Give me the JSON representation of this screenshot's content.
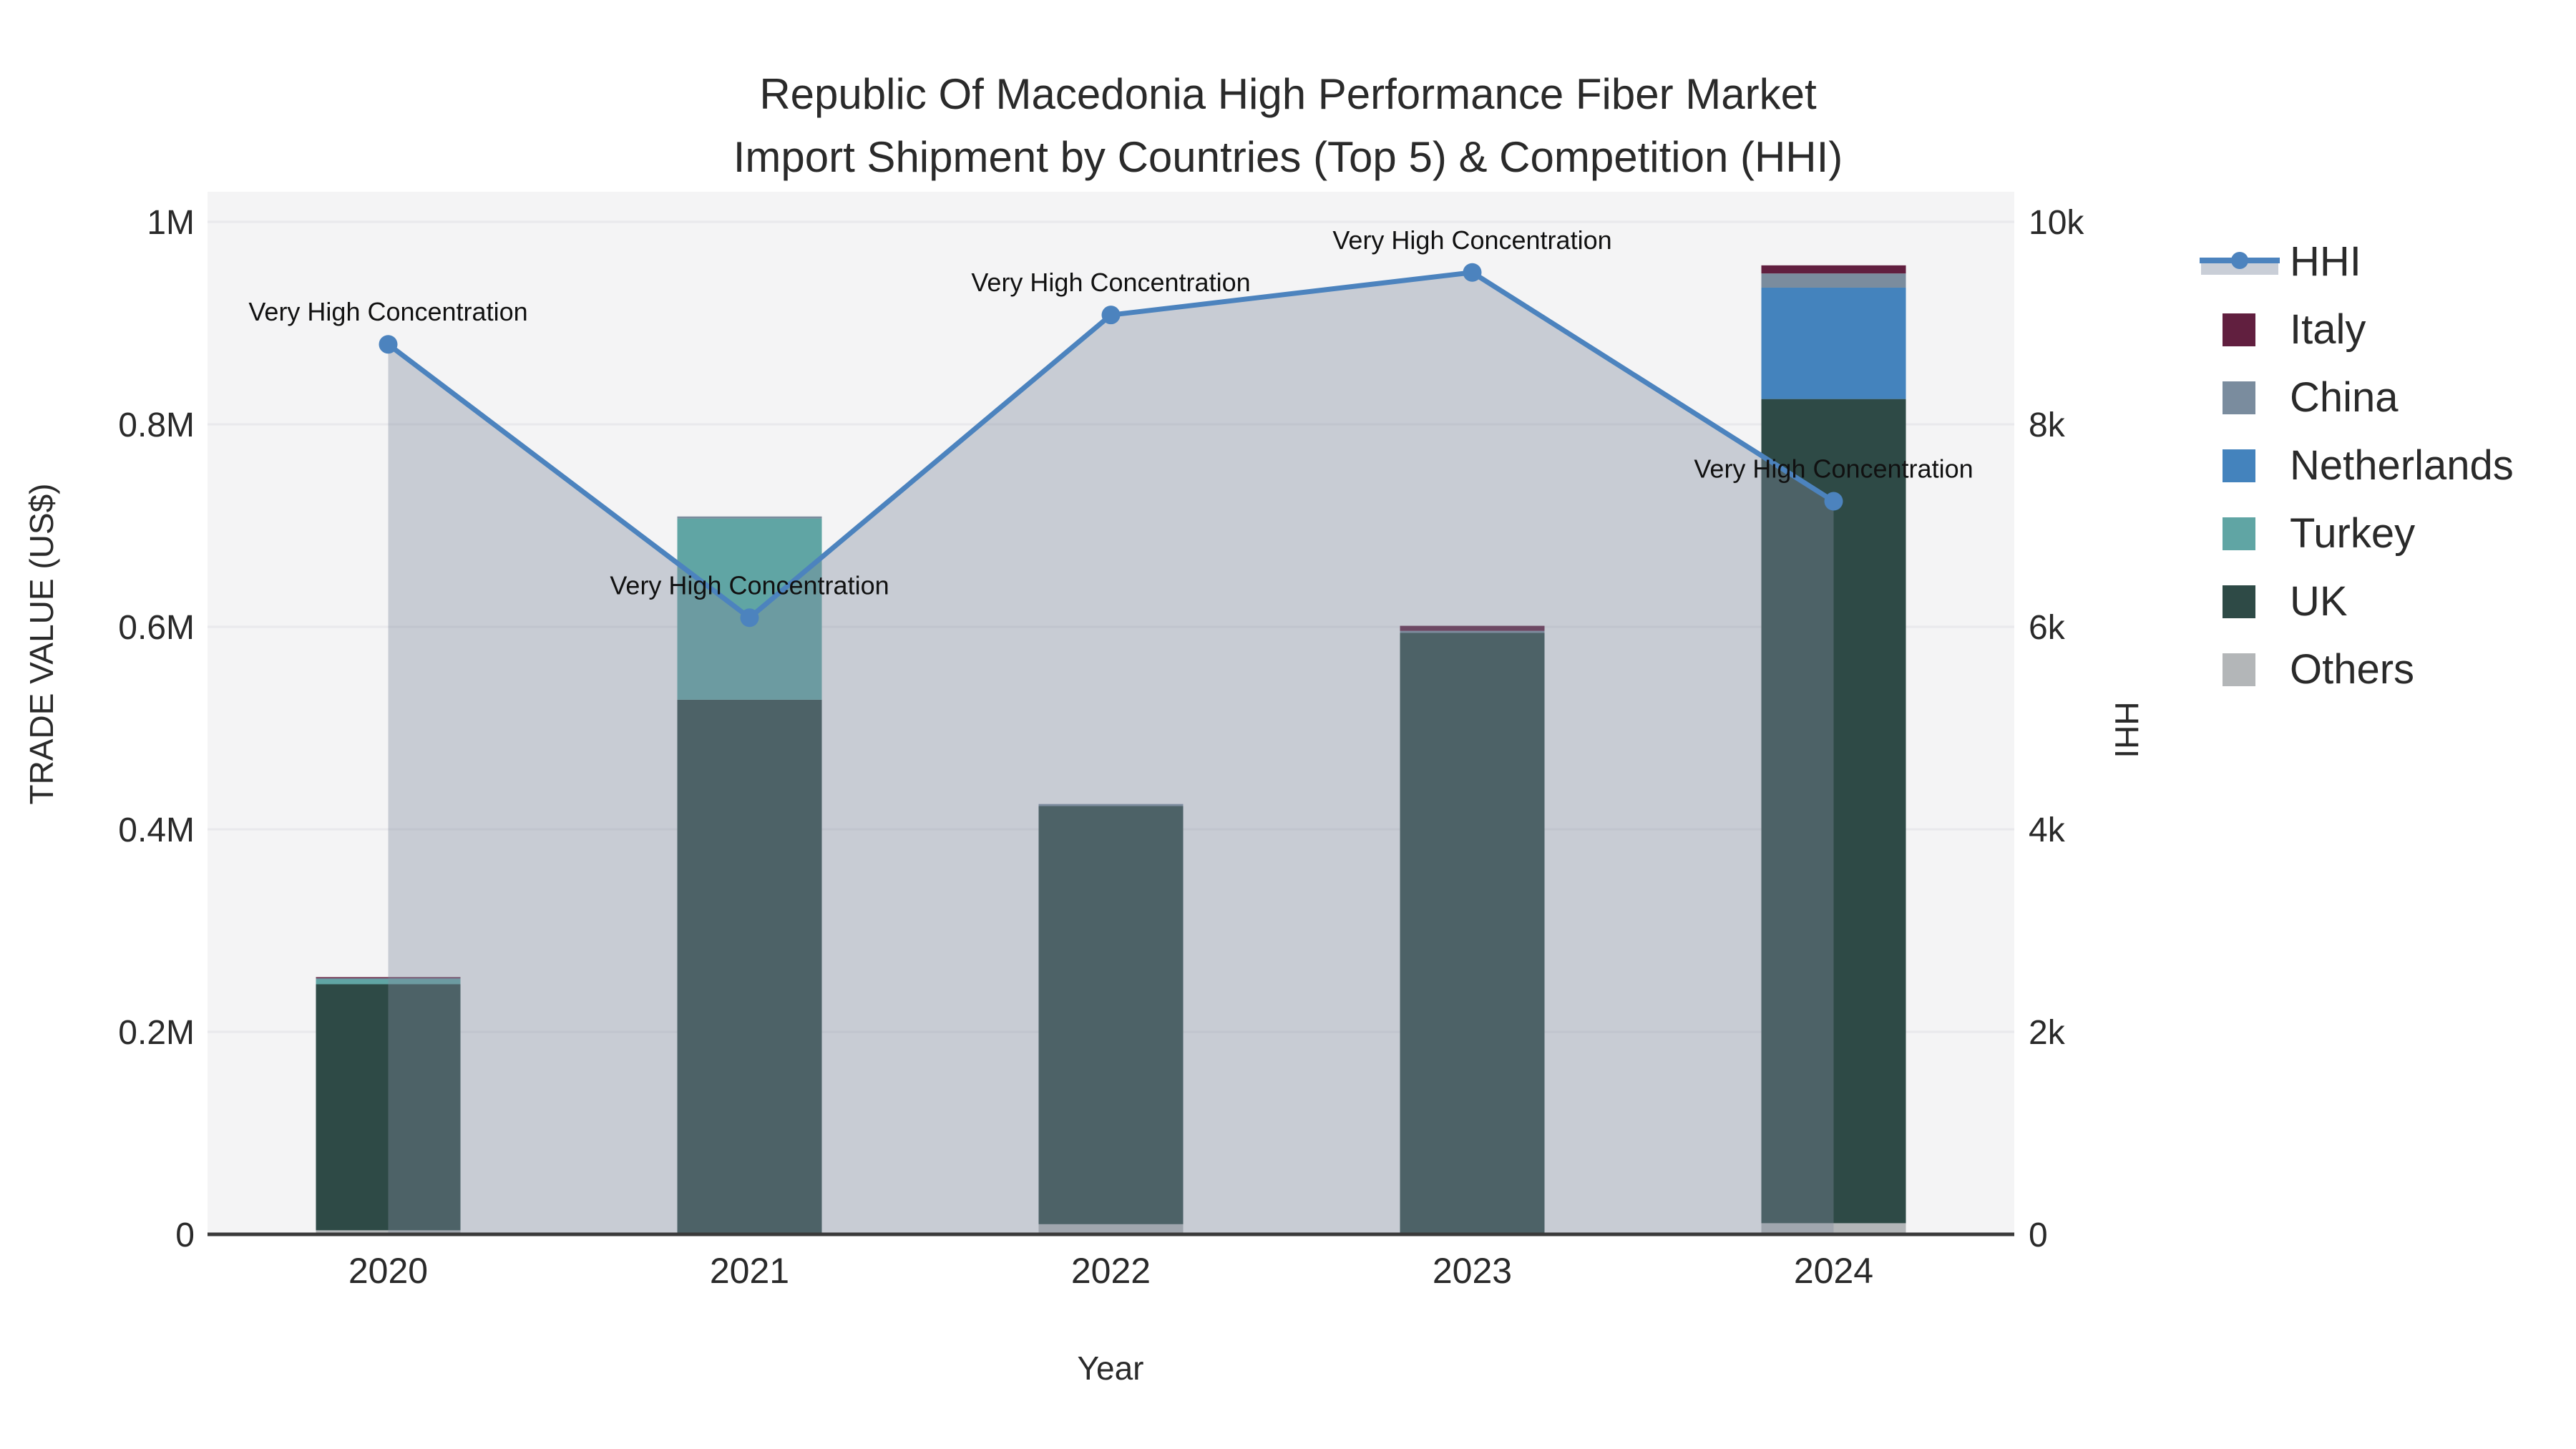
{
  "title": {
    "line1": "Republic Of Macedonia High Performance Fiber Market",
    "line2": "Import Shipment by Countries (Top 5) & Competition (HHI)"
  },
  "axes": {
    "y_left": {
      "title": "TRADE VALUE (US$)",
      "tick_labels": [
        "0",
        "0.2M",
        "0.4M",
        "0.6M",
        "0.8M",
        "1M"
      ],
      "tick_values": [
        0,
        200000,
        400000,
        600000,
        800000,
        1000000
      ],
      "range": [
        0,
        1030000
      ]
    },
    "y_right": {
      "title": "HHI",
      "tick_labels": [
        "0",
        "2k",
        "4k",
        "6k",
        "8k",
        "10k"
      ],
      "tick_values": [
        0,
        2000,
        4000,
        6000,
        8000,
        10000
      ],
      "range": [
        0,
        10300
      ]
    },
    "x": {
      "title": "Year",
      "categories": [
        "2020",
        "2021",
        "2022",
        "2023",
        "2024"
      ]
    }
  },
  "legend": {
    "items": [
      {
        "label": "HHI",
        "type": "line",
        "color": "#4C83BE"
      },
      {
        "label": "Italy",
        "type": "square",
        "color": "#611F3F"
      },
      {
        "label": "China",
        "type": "square",
        "color": "#7A8C9E"
      },
      {
        "label": "Netherlands",
        "type": "square",
        "color": "#4483BD"
      },
      {
        "label": "Turkey",
        "type": "square",
        "color": "#60A5A4"
      },
      {
        "label": "UK",
        "type": "square",
        "color": "#2E4A46"
      },
      {
        "label": "Others",
        "type": "square",
        "color": "#B3B6B8"
      }
    ]
  },
  "chart_data": {
    "type": "bar+line",
    "title": "Republic Of Macedonia High Performance Fiber Market Import Shipment by Countries (Top 5) & Competition (HHI)",
    "xlabel": "Year",
    "ylabel_left": "TRADE VALUE (US$)",
    "ylabel_right": "HHI",
    "categories": [
      "2020",
      "2021",
      "2022",
      "2023",
      "2024"
    ],
    "bar_series_bottom_to_top": [
      {
        "name": "Others",
        "color": "#B3B6B8",
        "values": [
          4000,
          0,
          10000,
          0,
          11000
        ]
      },
      {
        "name": "UK",
        "color": "#2E4A46",
        "values": [
          243000,
          528000,
          413000,
          594000,
          814000
        ]
      },
      {
        "name": "Turkey",
        "color": "#60A5A4",
        "values": [
          5000,
          179000,
          0,
          0,
          0
        ]
      },
      {
        "name": "Netherlands",
        "color": "#4483BD",
        "values": [
          0,
          0,
          0,
          0,
          110000
        ]
      },
      {
        "name": "China",
        "color": "#7A8C9E",
        "values": [
          1000,
          2000,
          2000,
          2000,
          14000
        ]
      },
      {
        "name": "Italy",
        "color": "#611F3F",
        "values": [
          1000,
          0,
          0,
          5000,
          8000
        ]
      }
    ],
    "bar_totals": [
      254000,
      709000,
      425000,
      601000,
      957000
    ],
    "line_series": {
      "name": "HHI",
      "axis": "right",
      "color": "#4C83BE",
      "area_fill": "rgba(128,140,158,0.38)",
      "values": [
        8790,
        6090,
        9080,
        9500,
        7240
      ],
      "point_annotations": [
        "Very High Concentration",
        "Very High Concentration",
        "Very High Concentration",
        "Very High Concentration",
        "Very High Concentration"
      ]
    },
    "ylim_left": [
      0,
      1000000
    ],
    "ylim_right": [
      0,
      10000
    ],
    "grid": true,
    "legend_position": "right"
  },
  "colors": {
    "plot_background": "#F4F4F5",
    "figure_background": "#FFFFFF",
    "gridline": "#E9E9EC",
    "axis_line": "#3A3A3A",
    "text": "#2A2A2A",
    "hhi_line": "#4C83BE",
    "hhi_area": "rgba(128,140,158,0.38)",
    "legend_band": "#C9CED7"
  }
}
